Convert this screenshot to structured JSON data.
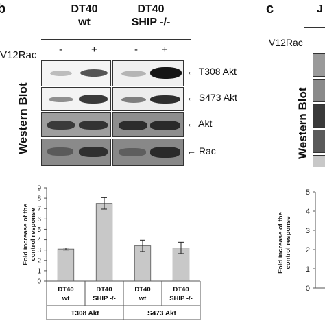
{
  "panel_b": {
    "letter": "b",
    "col_wt_line1": "DT40",
    "col_wt_line2": "wt",
    "col_ship_line1": "DT40",
    "col_ship_line2": "SHIP -/-",
    "treatment_label": "V12Rac",
    "lane_signs": [
      "-",
      "+",
      "-",
      "+"
    ],
    "side_label": "Western Blot",
    "blot_labels": [
      "T308 Akt",
      "S473 Akt",
      "Akt",
      "Rac"
    ],
    "arrow_glyph": "←"
  },
  "panel_c": {
    "letter": "c",
    "col_head_partial": "J",
    "treatment_label": "V12Rac",
    "side_label": "Western Blot",
    "ylabel_line1": "Fold increase of the",
    "ylabel_line2": "control response",
    "y_ticks": [
      "5",
      "4",
      "3",
      "2",
      "1",
      "0"
    ]
  },
  "chart_data": {
    "type": "bar",
    "ylabel_line1": "Fold increase of the",
    "ylabel_line2": "control response",
    "ylim": [
      0,
      9
    ],
    "y_ticks": [
      0,
      1,
      2,
      3,
      4,
      5,
      6,
      7,
      8,
      9
    ],
    "categories": [
      {
        "line1": "DT40",
        "line2": "wt"
      },
      {
        "line1": "DT40",
        "line2": "SHIP -/-"
      },
      {
        "line1": "DT40",
        "line2": "wt"
      },
      {
        "line1": "DT40",
        "line2": "SHIP -/-"
      }
    ],
    "values": [
      3.1,
      7.5,
      3.4,
      3.2
    ],
    "errors": [
      0.1,
      0.55,
      0.55,
      0.55
    ],
    "groups": [
      {
        "label": "T308 Akt",
        "span": [
          0,
          1
        ]
      },
      {
        "label": "S473 Akt",
        "span": [
          2,
          3
        ]
      }
    ],
    "bar_color": "#c8c8c8",
    "bar_edge": "#555555",
    "grid": false
  }
}
